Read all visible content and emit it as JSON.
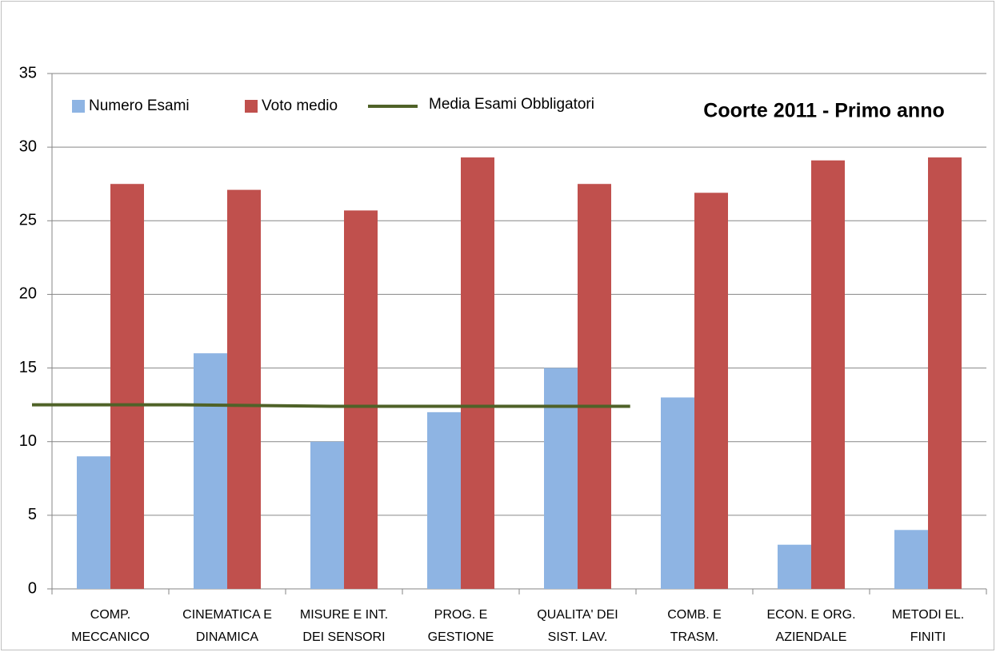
{
  "chart_data": {
    "type": "bar",
    "title": "Coorte 2011 - Primo anno",
    "categories": [
      [
        "COMP.",
        "MECCANICO"
      ],
      [
        "CINEMATICA E",
        "DINAMICA"
      ],
      [
        "MISURE E INT.",
        "DEI SENSORI"
      ],
      [
        "PROG. E",
        "GESTIONE"
      ],
      [
        "QUALITA' DEI",
        "SIST. LAV."
      ],
      [
        "COMB. E",
        "TRASM."
      ],
      [
        "ECON. E ORG.",
        "AZIENDALE"
      ],
      [
        "METODI  EL.",
        "FINITI"
      ]
    ],
    "series": [
      {
        "name": "Numero Esami",
        "color": "#8EB4E3",
        "type": "bar",
        "values": [
          9,
          16,
          10,
          12,
          15,
          13,
          3,
          4
        ]
      },
      {
        "name": "Voto medio",
        "color": "#C0504D",
        "type": "bar",
        "values": [
          27.5,
          27.1,
          25.7,
          29.3,
          27.5,
          26.9,
          29.1,
          29.3
        ]
      },
      {
        "name": "Media Esami Obbligatori",
        "color": "#4F6228",
        "type": "line",
        "values": [
          12.5,
          12.5,
          12.4,
          12.4,
          12.4,
          null,
          null,
          null
        ]
      }
    ],
    "ylim": [
      0,
      35
    ],
    "yticks": [
      0,
      5,
      10,
      15,
      20,
      25,
      30,
      35
    ],
    "grid": true
  }
}
